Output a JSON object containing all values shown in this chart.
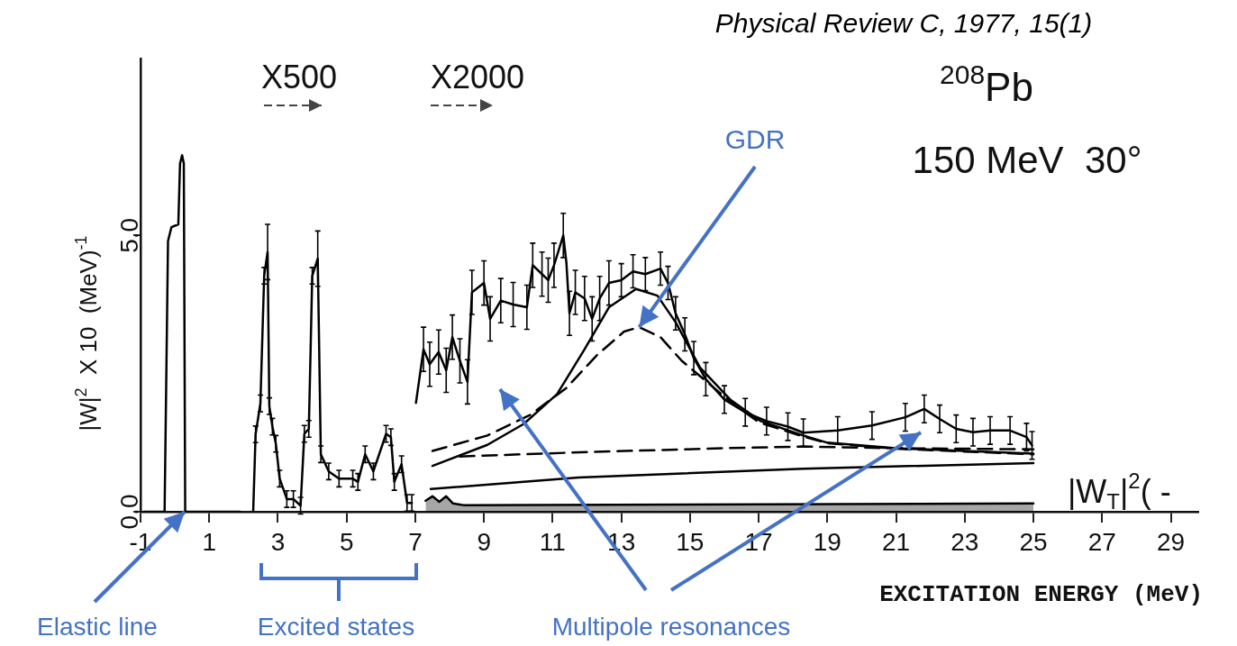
{
  "chart_data": {
    "type": "line",
    "title": "$^{208}$Pb",
    "subtitle": "150 MeV  30°",
    "xlabel": "EXCITATION ENERGY (MeV)",
    "ylabel": "|W|$^{2}$  X 10  (MeV)$^{-1}$",
    "xlim": [
      -1,
      29.8
    ],
    "ylim": [
      0,
      8.2
    ],
    "xticks": [
      -1,
      1,
      3,
      5,
      7,
      9,
      11,
      13,
      15,
      17,
      19,
      21,
      23,
      25,
      27,
      29
    ],
    "yticks": [
      {
        "value": 0,
        "label": "0.0"
      },
      {
        "value": 5,
        "label": "5.0"
      }
    ],
    "grid": false,
    "legend": false,
    "marker": "none",
    "series": [
      {
        "type": "line",
        "color": "#000000",
        "line_style": "solid",
        "x": [
          -0.9,
          -0.5,
          -0.3,
          -0.2,
          -0.1,
          0.1,
          0.15,
          0.21,
          0.26,
          0.3,
          0.35,
          1.0,
          1.9,
          2.1,
          2.28,
          2.35,
          2.49,
          2.6,
          2.7,
          2.75,
          2.84,
          2.94,
          3.05,
          3.26,
          3.45,
          3.66,
          3.77,
          3.9,
          4.0,
          4.16,
          4.25,
          4.48,
          4.78,
          5.18,
          5.33,
          5.54,
          5.78,
          6.15,
          6.29,
          6.39,
          6.6,
          6.76,
          6.9,
          6.95,
          7.02,
          7.24,
          7.42,
          7.68,
          7.9,
          8.08,
          8.3,
          8.52,
          8.65,
          9.0,
          9.18,
          9.49,
          9.85,
          10.25,
          10.42,
          10.69,
          10.87,
          11.04,
          11.31,
          11.4,
          11.49,
          11.66,
          11.93,
          12.15,
          12.37,
          12.64,
          13.0,
          13.34,
          13.7,
          14.14,
          14.36,
          14.58,
          14.85,
          15.11,
          15.46,
          16.0,
          16.61,
          17.23,
          17.85,
          18.3,
          19.3,
          20.3,
          21.27,
          21.82,
          22.27,
          22.75,
          23.24,
          23.74,
          24.32,
          24.8,
          24.96
        ],
        "values": [
          0,
          0,
          0,
          4.9,
          5.15,
          5.2,
          6.3,
          6.45,
          6.3,
          0,
          0,
          0,
          0,
          null,
          0,
          1.4,
          1.96,
          4.27,
          4.7,
          1.91,
          1.54,
          1.23,
          0.6,
          0.23,
          0.23,
          0.11,
          1.41,
          1.5,
          4.27,
          4.58,
          1.04,
          0.73,
          0.6,
          0.6,
          0.54,
          1.04,
          0.73,
          1.41,
          1.35,
          0.54,
          0.86,
          0.16,
          0.16,
          null,
          1.97,
          2.94,
          2.67,
          2.89,
          2.56,
          3.16,
          2.73,
          2.35,
          3.97,
          4.14,
          3.49,
          3.82,
          3.75,
          3.7,
          4.46,
          4.3,
          4.19,
          4.46,
          5.0,
          4.51,
          3.59,
          3.97,
          3.86,
          3.49,
          3.86,
          4.14,
          4.19,
          4.35,
          4.3,
          4.4,
          4.14,
          3.59,
          3.21,
          2.78,
          2.4,
          2.03,
          1.8,
          1.64,
          1.54,
          1.43,
          1.47,
          1.56,
          1.71,
          1.86,
          1.68,
          1.5,
          1.44,
          1.47,
          1.47,
          1.35,
          1.2
        ],
        "errors": [
          null,
          null,
          null,
          null,
          null,
          null,
          null,
          null,
          null,
          null,
          null,
          null,
          null,
          null,
          null,
          0.15,
          0.15,
          0.15,
          0.5,
          0.15,
          0.15,
          0.15,
          0.15,
          0.15,
          0.15,
          0.15,
          0.15,
          0.15,
          0.15,
          0.5,
          0.15,
          0.15,
          0.15,
          0.15,
          0.15,
          0.15,
          0.15,
          0.15,
          0.15,
          0.15,
          0.15,
          0.15,
          0.15,
          null,
          null,
          0.4,
          0.4,
          0.4,
          0.4,
          0.4,
          0.4,
          0.4,
          0.4,
          0.4,
          0.4,
          0.4,
          0.4,
          0.4,
          0.4,
          0.4,
          0.4,
          0.4,
          0.4,
          null,
          0.4,
          0.4,
          0.4,
          0.4,
          0.4,
          0.4,
          0.3,
          0.3,
          0.3,
          0.3,
          0.3,
          0.3,
          0.3,
          0.3,
          0.3,
          0.25,
          0.25,
          0.25,
          0.25,
          0.25,
          0.25,
          0.25,
          0.25,
          0.25,
          0.25,
          0.25,
          0.25,
          0.25,
          0.25,
          0.25,
          0.25
        ]
      },
      {
        "type": "line",
        "color": "#000000",
        "line_style": "solid",
        "x": [
          7.5,
          9.1,
          10.16,
          11.13,
          11.93,
          12.64,
          13.43,
          14.05,
          14.58,
          15.29,
          16.17,
          17.06,
          18.3,
          19.0,
          21.0,
          23.0,
          25.0
        ],
        "values": [
          0.83,
          1.21,
          1.59,
          2.13,
          2.94,
          3.7,
          4.03,
          3.91,
          3.43,
          2.61,
          2.03,
          1.64,
          1.38,
          1.25,
          1.15,
          1.1,
          1.05
        ]
      },
      {
        "type": "line",
        "color": "#000000",
        "line_style": "dashed",
        "x": [
          7.5,
          9.1,
          10.34,
          11.4,
          12.3,
          13.08,
          13.52,
          14.14,
          14.76,
          15.3,
          16.2,
          17.0,
          18.3,
          19.0,
          21.0,
          23.0,
          25.0
        ],
        "values": [
          1.1,
          1.38,
          1.75,
          2.24,
          2.84,
          3.26,
          3.34,
          3.16,
          2.73,
          2.45,
          1.98,
          1.62,
          1.36,
          1.24,
          1.14,
          1.09,
          1.04
        ]
      },
      {
        "type": "line",
        "color": "#000000",
        "line_style": "dashed",
        "x": [
          8.3,
          12,
          16,
          18.3,
          21,
          25
        ],
        "values": [
          1.0,
          1.08,
          1.15,
          1.18,
          1.15,
          1.13
        ]
      },
      {
        "type": "line",
        "color": "#000000",
        "line_style": "solid",
        "x": [
          7.45,
          11.75,
          18.3,
          25
        ],
        "values": [
          0.41,
          0.62,
          0.78,
          0.88
        ]
      },
      {
        "type": "area",
        "color": "#000000",
        "line_style": "solid",
        "x": [
          7.3,
          7.5,
          7.7,
          7.9,
          8.1,
          8.4,
          25
        ],
        "values": [
          0.2,
          0.28,
          0.18,
          0.28,
          0.15,
          0.12,
          0.15
        ]
      }
    ],
    "annotations": [
      "Physical Review C, 1977, 15(1)",
      "X500",
      "X2000",
      "|W$_{T}$|$^{2}$( -",
      {
        "text": "GDR",
        "x": 13.52,
        "y": 3.34
      },
      "Elastic line",
      "Excited states",
      "Multipole resonances"
    ]
  }
}
